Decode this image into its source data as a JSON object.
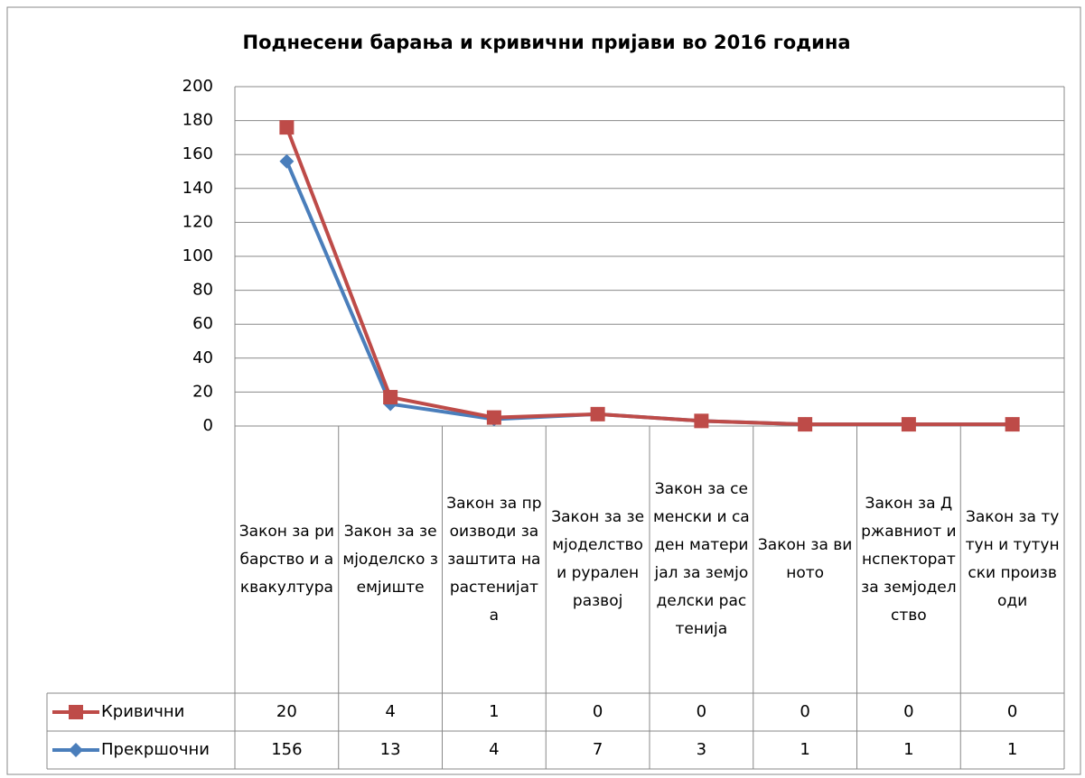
{
  "chart_data": {
    "type": "line",
    "stacked": true,
    "title": "Поднесени барања и кривични пријави во 2016 година",
    "categories": [
      "Закон за рибарство и аквакултура",
      "Закон за земјоделско земјиште",
      "Закон за производи за заштита на растенијата",
      "Закон за земјоделство и рурален развој",
      "Закон за семенски и саден материјал за земјоделски растенија",
      "Закон за виното",
      "Закон за Државниот инспекторат за земјоделство",
      "Закон за тутун и тутунски производи"
    ],
    "series": [
      {
        "name": "Кривични",
        "color": "#be4b48",
        "marker": "square",
        "values": [
          20,
          4,
          1,
          0,
          0,
          0,
          0,
          0
        ]
      },
      {
        "name": "Прекршочни",
        "color": "#4a7ebb",
        "marker": "diamond",
        "values": [
          156,
          13,
          4,
          7,
          3,
          1,
          1,
          1
        ]
      }
    ],
    "ylim": [
      0,
      200
    ],
    "yticks": [
      0,
      20,
      40,
      60,
      80,
      100,
      120,
      140,
      160,
      180,
      200
    ],
    "grid": true,
    "data_table": true
  }
}
